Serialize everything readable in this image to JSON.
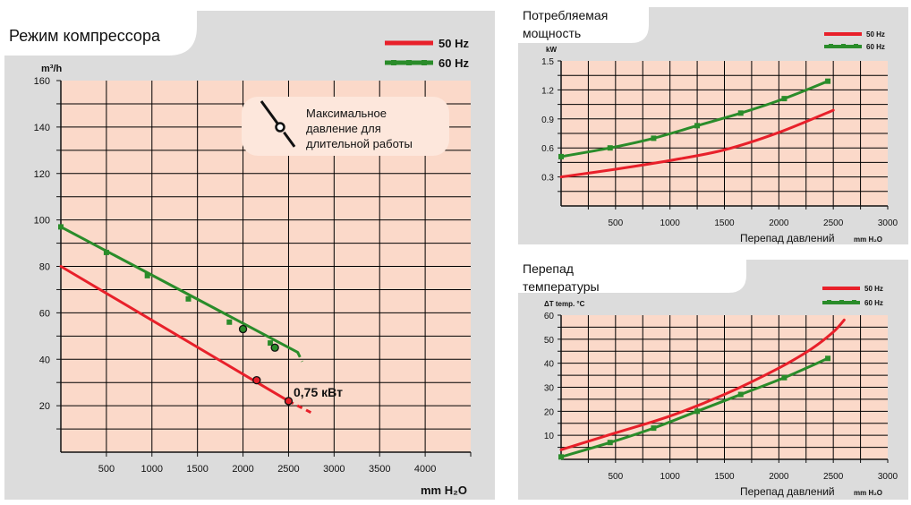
{
  "colors": {
    "panel_bg": "#dcdcdc",
    "plot_bg": "#fbd9c9",
    "grid": "#000000",
    "series_50": "#e8202a",
    "series_60": "#2a8c2a"
  },
  "chart_data": [
    {
      "id": "compressor",
      "type": "line",
      "title": "Режим компрессора",
      "ylabel": "m³/h",
      "xlabel": "mm H₂O",
      "xlim": [
        0,
        4500
      ],
      "ylim": [
        0,
        160
      ],
      "x_ticks": [
        "500",
        "1000",
        "1500",
        "2000",
        "2500",
        "3000",
        "3500",
        "4000"
      ],
      "y_ticks": [
        "20",
        "40",
        "60",
        "80",
        "100",
        "120",
        "140",
        "160"
      ],
      "legend": [
        "50 Hz",
        "60 Hz"
      ],
      "annotation": {
        "lines": [
          "Максимальное",
          "давление для",
          "длительной работы"
        ]
      },
      "point_label": "0,75 кВт",
      "series": [
        {
          "name": "50 Hz",
          "x": [
            0,
            2500
          ],
          "y": [
            80,
            22
          ],
          "dashed_to": [
            2750,
            17
          ]
        },
        {
          "name": "60 Hz",
          "x": [
            0,
            2600
          ],
          "y": [
            97,
            43
          ],
          "dashed_to": [
            2650,
            39
          ]
        }
      ],
      "markers_60": [
        [
          0,
          97
        ],
        [
          500,
          86
        ],
        [
          950,
          76
        ],
        [
          1400,
          66
        ],
        [
          1850,
          56
        ],
        [
          2300,
          47
        ]
      ],
      "circles_50": [
        [
          2150,
          31
        ],
        [
          2500,
          22
        ]
      ],
      "circles_60": [
        [
          2000,
          53
        ],
        [
          2350,
          45
        ]
      ]
    },
    {
      "id": "power",
      "type": "line",
      "title_lines": [
        "Потребляемая",
        "мощность"
      ],
      "ylabel": "kW",
      "xlabel": "Перепад давлений",
      "xunit": "mm H₂O",
      "xlim": [
        0,
        3000
      ],
      "ylim": [
        0,
        1.5
      ],
      "x_ticks": [
        "500",
        "1000",
        "1500",
        "2000",
        "2500",
        "3000"
      ],
      "y_ticks": [
        "0.3",
        "0.6",
        "0.9",
        "1.2",
        "1.5"
      ],
      "legend": [
        "50 Hz",
        "60 Hz"
      ],
      "series": [
        {
          "name": "50 Hz",
          "x": [
            0,
            500,
            1000,
            1500,
            2000,
            2500
          ],
          "y": [
            0.3,
            0.38,
            0.47,
            0.58,
            0.76,
            0.99
          ]
        },
        {
          "name": "60 Hz",
          "x": [
            0,
            450,
            850,
            1250,
            1650,
            2050,
            2450
          ],
          "y": [
            0.51,
            0.6,
            0.7,
            0.83,
            0.96,
            1.11,
            1.29
          ]
        }
      ]
    },
    {
      "id": "temperature",
      "type": "line",
      "title_lines": [
        "Перепад",
        "температуры"
      ],
      "ylabel": "ΔT  temp. °C",
      "xlabel": "Перепад давлений",
      "xunit": "mm H₂O",
      "xlim": [
        0,
        3000
      ],
      "ylim": [
        0,
        60
      ],
      "x_ticks": [
        "500",
        "1000",
        "1500",
        "2000",
        "2500",
        "3000"
      ],
      "y_ticks": [
        "10",
        "20",
        "30",
        "40",
        "50",
        "60"
      ],
      "legend": [
        "50 Hz",
        "60 Hz"
      ],
      "series": [
        {
          "name": "50 Hz",
          "x": [
            0,
            500,
            1000,
            1500,
            2000,
            2300,
            2500,
            2600
          ],
          "y": [
            4,
            11,
            18,
            27,
            38,
            46,
            53,
            58
          ]
        },
        {
          "name": "60 Hz",
          "x": [
            0,
            450,
            850,
            1250,
            1650,
            2050,
            2450
          ],
          "y": [
            1,
            7,
            13,
            20,
            27,
            34,
            42
          ]
        }
      ]
    }
  ]
}
